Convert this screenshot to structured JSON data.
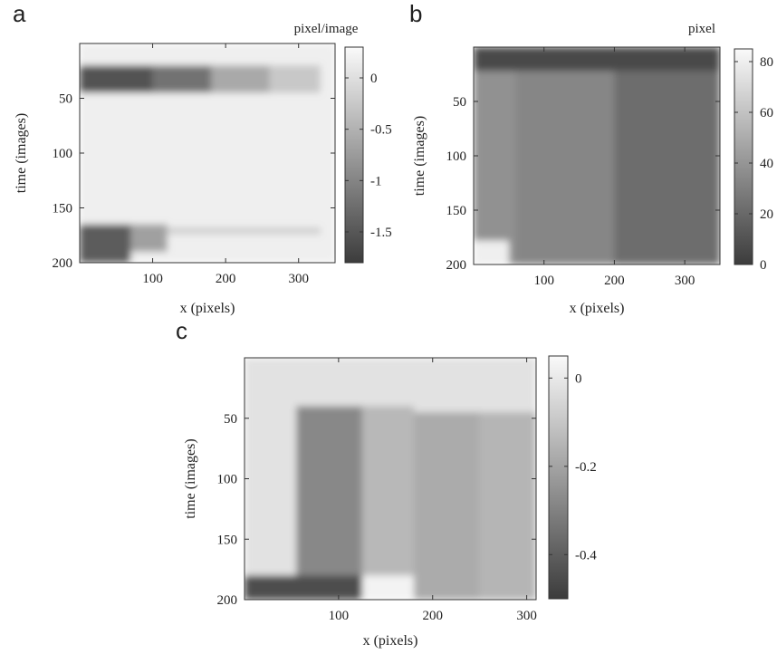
{
  "chart_data": [
    {
      "type": "heatmap",
      "panel_label": "a",
      "xlabel": "x (pixels)",
      "ylabel": "time (images)",
      "x_ticks": [
        100,
        200,
        300
      ],
      "y_ticks": [
        50,
        100,
        150,
        200
      ],
      "xlim": [
        0,
        350
      ],
      "ylim": [
        0,
        200
      ],
      "y_inverted": true,
      "colorbar": {
        "title": "pixel/image",
        "ticks": [
          "0",
          "-0.5",
          "-1",
          "-1.5"
        ],
        "tick_values": [
          0,
          -0.5,
          -1,
          -1.5
        ],
        "range": [
          -1.8,
          0.3
        ]
      },
      "colormap": "gray",
      "regions": [
        {
          "x": [
            0,
            350
          ],
          "y": [
            0,
            200
          ],
          "value": 0.18
        },
        {
          "x": [
            0,
            100
          ],
          "y": [
            20,
            45
          ],
          "value": -1.55
        },
        {
          "x": [
            100,
            180
          ],
          "y": [
            20,
            45
          ],
          "value": -1.2
        },
        {
          "x": [
            180,
            260
          ],
          "y": [
            20,
            45
          ],
          "value": -0.6
        },
        {
          "x": [
            260,
            330
          ],
          "y": [
            20,
            45
          ],
          "value": -0.25
        },
        {
          "x": [
            0,
            70
          ],
          "y": [
            165,
            200
          ],
          "value": -1.45
        },
        {
          "x": [
            70,
            120
          ],
          "y": [
            165,
            190
          ],
          "value": -0.7
        },
        {
          "x": [
            120,
            330
          ],
          "y": [
            168,
            174
          ],
          "value": -0.2
        }
      ]
    },
    {
      "type": "heatmap",
      "panel_label": "b",
      "xlabel": "x (pixels)",
      "ylabel": "time (images)",
      "x_ticks": [
        100,
        200,
        300
      ],
      "y_ticks": [
        50,
        100,
        150,
        200
      ],
      "xlim": [
        0,
        350
      ],
      "ylim": [
        0,
        200
      ],
      "y_inverted": true,
      "colorbar": {
        "title": "pixel",
        "ticks": [
          "80",
          "60",
          "40",
          "20",
          "0"
        ],
        "tick_values": [
          80,
          60,
          40,
          20,
          0
        ],
        "range": [
          0,
          85
        ]
      },
      "colormap": "gray",
      "regions": [
        {
          "x": [
            0,
            350
          ],
          "y": [
            0,
            200
          ],
          "value": 30
        },
        {
          "x": [
            0,
            350
          ],
          "y": [
            0,
            22
          ],
          "value": 6
        },
        {
          "x": [
            0,
            60
          ],
          "y": [
            22,
            200
          ],
          "value": 38
        },
        {
          "x": [
            60,
            200
          ],
          "y": [
            22,
            200
          ],
          "value": 33
        },
        {
          "x": [
            200,
            350
          ],
          "y": [
            22,
            200
          ],
          "value": 22
        },
        {
          "x": [
            0,
            50
          ],
          "y": [
            178,
            200
          ],
          "value": 80
        }
      ]
    },
    {
      "type": "heatmap",
      "panel_label": "c",
      "xlabel": "x (pixels)",
      "ylabel": "time (images)",
      "x_ticks": [
        100,
        200,
        300
      ],
      "y_ticks": [
        50,
        100,
        150,
        200
      ],
      "xlim": [
        0,
        310
      ],
      "ylim": [
        0,
        200
      ],
      "y_inverted": true,
      "colorbar": {
        "title": "",
        "ticks": [
          "0",
          "-0.2",
          "-0.4"
        ],
        "tick_values": [
          0,
          -0.2,
          -0.4
        ],
        "range": [
          -0.5,
          0.05
        ]
      },
      "colormap": "gray",
      "regions": [
        {
          "x": [
            0,
            310
          ],
          "y": [
            0,
            200
          ],
          "value": -0.02
        },
        {
          "x": [
            55,
            125
          ],
          "y": [
            40,
            200
          ],
          "value": -0.28
        },
        {
          "x": [
            125,
            180
          ],
          "y": [
            40,
            180
          ],
          "value": -0.14
        },
        {
          "x": [
            180,
            250
          ],
          "y": [
            45,
            200
          ],
          "value": -0.18
        },
        {
          "x": [
            250,
            310
          ],
          "y": [
            45,
            200
          ],
          "value": -0.15
        },
        {
          "x": [
            0,
            125
          ],
          "y": [
            180,
            200
          ],
          "value": -0.45
        },
        {
          "x": [
            125,
            180
          ],
          "y": [
            180,
            200
          ],
          "value": 0.03
        }
      ]
    }
  ]
}
